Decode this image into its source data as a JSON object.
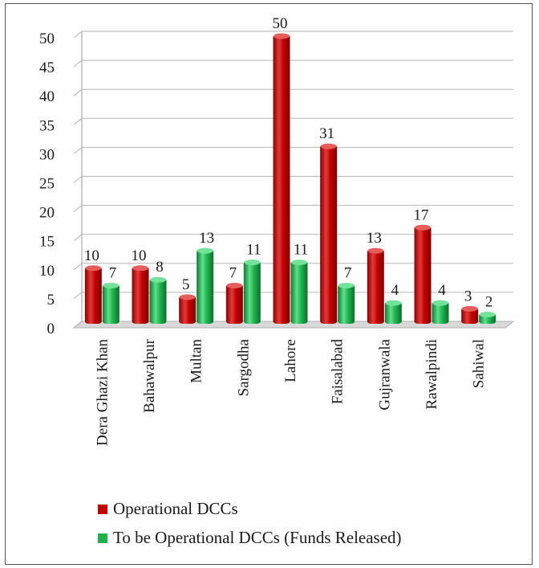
{
  "chart_data": {
    "type": "bar",
    "categories": [
      "Dera Ghazi Khan",
      "Bahawalpur",
      "Multan",
      "Sargodha",
      "Lahore",
      "Faisalabad",
      "Gujranwala",
      "Rawalpindi",
      "Sahiwal"
    ],
    "series": [
      {
        "name": "Operational DCCs",
        "values": [
          10,
          10,
          5,
          7,
          50,
          31,
          13,
          17,
          3
        ],
        "color": "#c00000"
      },
      {
        "name": "To be Operational DCCs (Funds Released)",
        "values": [
          7,
          8,
          13,
          11,
          11,
          7,
          4,
          4,
          2
        ],
        "color": "#1fb04a"
      }
    ],
    "yticks": [
      "0",
      "5",
      "10",
      "15",
      "20",
      "25",
      "30",
      "35",
      "40",
      "45",
      "50"
    ],
    "ylim": [
      0,
      50
    ],
    "grid": true,
    "legend_position": "bottom",
    "bar_style": "3d-cylinder"
  }
}
